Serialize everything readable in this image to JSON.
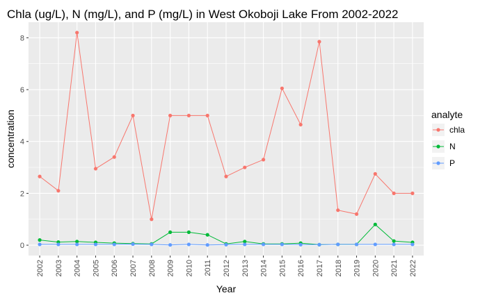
{
  "chart_data": {
    "type": "line",
    "title": "Chla (ug/L), N (mg/L), and P (mg/L) in West Okoboji Lake From 2002-2022",
    "xlabel": "Year",
    "ylabel": "concentration",
    "categories": [
      "2002",
      "2003",
      "2004",
      "2005",
      "2006",
      "2007",
      "2008",
      "2009",
      "2010",
      "2011",
      "2012",
      "2013",
      "2014",
      "2015",
      "2016",
      "2017",
      "2018",
      "2019",
      "2020",
      "2021",
      "2022"
    ],
    "yticks": [
      "0",
      "2",
      "4",
      "6",
      "8"
    ],
    "ylim": [
      -0.4,
      8.6
    ],
    "grid": true,
    "legend": {
      "title": "analyte",
      "placement": "right"
    },
    "series": [
      {
        "name": "chla",
        "color": "#F8766D",
        "values": [
          2.65,
          2.1,
          8.2,
          2.95,
          3.4,
          5.0,
          1.0,
          5.0,
          5.0,
          5.0,
          2.65,
          3.0,
          3.3,
          6.05,
          4.65,
          7.85,
          1.35,
          1.2,
          2.75,
          2.0,
          2.0
        ]
      },
      {
        "name": "N",
        "color": "#00BA38",
        "values": [
          0.2,
          0.12,
          0.14,
          0.11,
          0.08,
          0.06,
          0.05,
          0.5,
          0.5,
          0.4,
          0.05,
          0.14,
          0.05,
          0.05,
          0.08,
          0.02,
          0.03,
          0.03,
          0.8,
          0.16,
          0.11
        ]
      },
      {
        "name": "P",
        "color": "#619CFF",
        "values": [
          0.03,
          0.03,
          0.03,
          0.03,
          0.03,
          0.04,
          0.03,
          0.01,
          0.03,
          0.01,
          0.02,
          0.03,
          0.03,
          0.03,
          0.02,
          0.02,
          0.03,
          0.03,
          0.03,
          0.03,
          0.03
        ]
      }
    ]
  }
}
